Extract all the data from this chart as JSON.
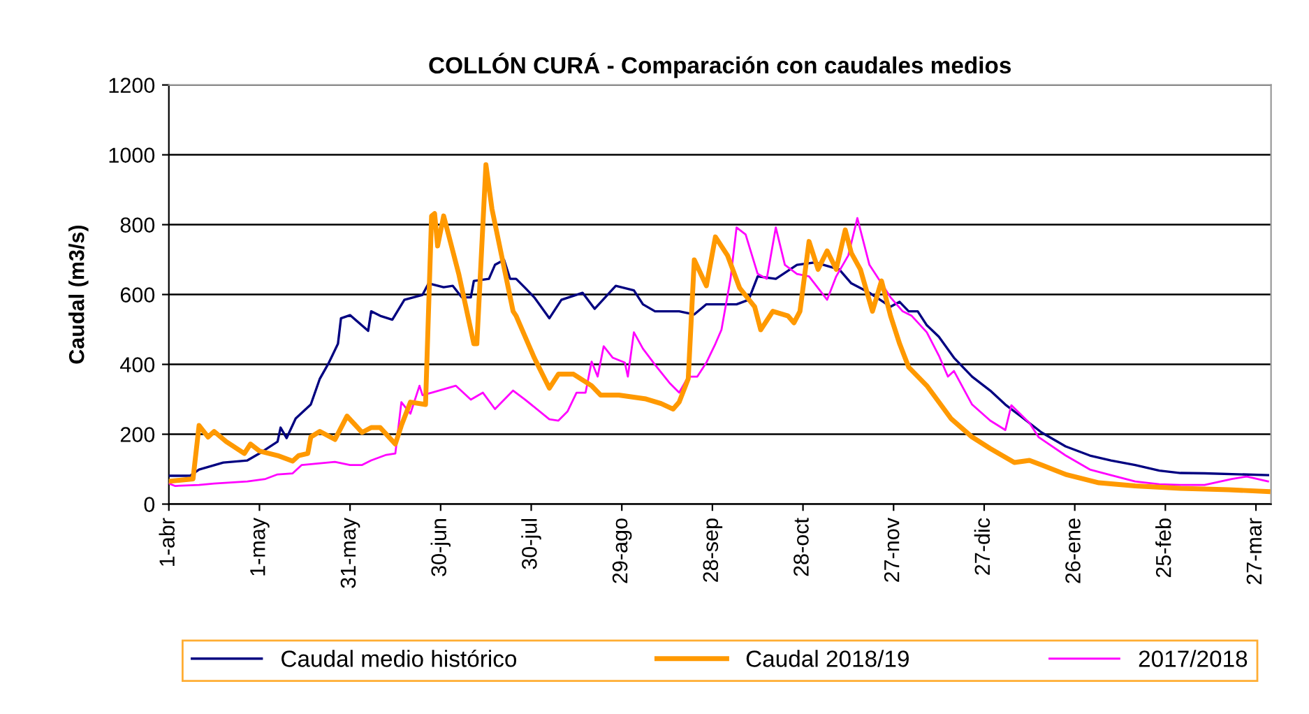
{
  "chart_data": {
    "type": "line",
    "title": "COLLÓN CURÁ - Comparación con caudales medios",
    "ylabel": "Caudal (m3/s)",
    "xlim": [
      "2018-04-01",
      "2019-04-01"
    ],
    "ylim": [
      0,
      1200
    ],
    "yticks": [
      0,
      200,
      400,
      600,
      800,
      1000,
      1200
    ],
    "xticks": [
      {
        "value": "2018-04-01",
        "label": "1-abr"
      },
      {
        "value": "2018-05-01",
        "label": "1-may"
      },
      {
        "value": "2018-05-31",
        "label": "31-may"
      },
      {
        "value": "2018-06-30",
        "label": "30-jun"
      },
      {
        "value": "2018-07-30",
        "label": "30-jul"
      },
      {
        "value": "2018-08-29",
        "label": "29-ago"
      },
      {
        "value": "2018-09-28",
        "label": "28-sep"
      },
      {
        "value": "2018-10-28",
        "label": "28-oct"
      },
      {
        "value": "2018-11-27",
        "label": "27-nov"
      },
      {
        "value": "2018-12-27",
        "label": "27-dic"
      },
      {
        "value": "2019-01-26",
        "label": "26-ene"
      },
      {
        "value": "2019-02-25",
        "label": "25-feb"
      },
      {
        "value": "2019-03-27",
        "label": "27-mar"
      }
    ],
    "grid": "y",
    "legend": "bottom",
    "marker": "none",
    "line_style": "solid",
    "series": [
      {
        "name": "Caudal medio histórico",
        "color": "#000080",
        "x": [
          "2018-04-01",
          "2018-04-08",
          "2018-04-11",
          "2018-04-19",
          "2018-04-27",
          "2018-05-01",
          "2018-05-07",
          "2018-05-08",
          "2018-05-10",
          "2018-05-13",
          "2018-05-18",
          "2018-05-21",
          "2018-05-24",
          "2018-05-27",
          "2018-05-28",
          "2018-05-31",
          "2018-06-06",
          "2018-06-07",
          "2018-06-10",
          "2018-06-14",
          "2018-06-18",
          "2018-06-24",
          "2018-06-26",
          "2018-07-01",
          "2018-07-04",
          "2018-07-07",
          "2018-07-10",
          "2018-07-11",
          "2018-07-16",
          "2018-07-18",
          "2018-07-21",
          "2018-07-23",
          "2018-07-25",
          "2018-07-28",
          "2018-07-31",
          "2018-08-05",
          "2018-08-09",
          "2018-08-16",
          "2018-08-20",
          "2018-08-27",
          "2018-09-02",
          "2018-09-05",
          "2018-09-09",
          "2018-09-17",
          "2018-09-22",
          "2018-09-26",
          "2018-10-06",
          "2018-10-10",
          "2018-10-13",
          "2018-10-19",
          "2018-10-26",
          "2018-11-01",
          "2018-11-09",
          "2018-11-13",
          "2018-11-19",
          "2018-11-26",
          "2018-11-29",
          "2018-12-02",
          "2018-12-05",
          "2018-12-08",
          "2018-12-12",
          "2018-12-17",
          "2018-12-23",
          "2018-12-29",
          "2019-01-03",
          "2019-01-08",
          "2019-01-15",
          "2019-01-23",
          "2019-01-31",
          "2019-02-07",
          "2019-02-15",
          "2019-02-23",
          "2019-03-02",
          "2019-03-10",
          "2019-03-31"
        ],
        "values": [
          81,
          81,
          99,
          119,
          125,
          145,
          179,
          219,
          189,
          245,
          285,
          359,
          405,
          459,
          532,
          541,
          496,
          552,
          539,
          528,
          585,
          599,
          632,
          621,
          625,
          592,
          592,
          639,
          645,
          685,
          699,
          645,
          645,
          619,
          592,
          532,
          585,
          605,
          559,
          625,
          612,
          572,
          552,
          552,
          543,
          572,
          572,
          585,
          652,
          645,
          685,
          692,
          672,
          632,
          605,
          565,
          579,
          552,
          552,
          512,
          479,
          419,
          365,
          325,
          285,
          252,
          205,
          165,
          139,
          125,
          112,
          96,
          89,
          88,
          83
        ]
      },
      {
        "name": "Caudal 2018/19",
        "color": "#ff9900",
        "x": [
          "2018-04-01",
          "2018-04-09",
          "2018-04-11",
          "2018-04-14",
          "2018-04-16",
          "2018-04-20",
          "2018-04-26",
          "2018-04-28",
          "2018-05-01",
          "2018-05-07",
          "2018-05-12",
          "2018-05-14",
          "2018-05-17",
          "2018-05-18",
          "2018-05-21",
          "2018-05-26",
          "2018-05-30",
          "2018-06-04",
          "2018-06-07",
          "2018-06-10",
          "2018-06-15",
          "2018-06-17",
          "2018-06-20",
          "2018-06-25",
          "2018-06-27",
          "2018-06-28",
          "2018-06-29",
          "2018-07-01",
          "2018-07-06",
          "2018-07-11",
          "2018-07-12",
          "2018-07-15",
          "2018-07-17",
          "2018-07-24",
          "2018-07-25",
          "2018-07-31",
          "2018-08-05",
          "2018-08-08",
          "2018-08-13",
          "2018-08-19",
          "2018-08-22",
          "2018-08-28",
          "2018-09-06",
          "2018-09-11",
          "2018-09-15",
          "2018-09-17",
          "2018-09-20",
          "2018-09-22",
          "2018-09-26",
          "2018-09-29",
          "2018-10-03",
          "2018-10-07",
          "2018-10-12",
          "2018-10-14",
          "2018-10-18",
          "2018-10-23",
          "2018-10-25",
          "2018-10-27",
          "2018-10-30",
          "2018-11-02",
          "2018-11-05",
          "2018-11-08",
          "2018-11-11",
          "2018-11-13",
          "2018-11-16",
          "2018-11-20",
          "2018-11-23",
          "2018-11-26",
          "2018-11-29",
          "2018-12-02",
          "2018-12-08",
          "2018-12-16",
          "2018-12-23",
          "2018-12-29",
          "2019-01-06",
          "2019-01-11",
          "2019-01-15",
          "2019-01-23",
          "2019-02-03",
          "2019-02-15",
          "2019-03-02",
          "2019-03-18",
          "2019-03-31"
        ],
        "values": [
          65,
          72,
          225,
          192,
          208,
          179,
          145,
          172,
          152,
          139,
          123,
          139,
          145,
          192,
          208,
          185,
          252,
          205,
          219,
          219,
          172,
          225,
          292,
          285,
          825,
          832,
          739,
          825,
          659,
          459,
          459,
          972,
          845,
          552,
          539,
          419,
          332,
          372,
          372,
          339,
          312,
          312,
          301,
          288,
          272,
          292,
          359,
          699,
          625,
          765,
          712,
          619,
          565,
          499,
          552,
          539,
          519,
          552,
          752,
          672,
          725,
          672,
          785,
          719,
          672,
          552,
          639,
          539,
          459,
          392,
          339,
          245,
          192,
          159,
          119,
          125,
          112,
          85,
          61,
          52,
          45,
          41,
          36
        ]
      },
      {
        "name": "2017/2018",
        "color": "#ff00ff",
        "x": [
          "2018-04-01",
          "2018-04-03",
          "2018-04-11",
          "2018-04-16",
          "2018-04-27",
          "2018-05-03",
          "2018-05-07",
          "2018-05-12",
          "2018-05-15",
          "2018-05-26",
          "2018-05-31",
          "2018-06-04",
          "2018-06-07",
          "2018-06-12",
          "2018-06-15",
          "2018-06-17",
          "2018-06-20",
          "2018-06-23",
          "2018-06-24",
          "2018-06-27",
          "2018-07-05",
          "2018-07-10",
          "2018-07-14",
          "2018-07-18",
          "2018-07-24",
          "2018-07-28",
          "2018-08-05",
          "2018-08-08",
          "2018-08-11",
          "2018-08-14",
          "2018-08-17",
          "2018-08-19",
          "2018-08-21",
          "2018-08-23",
          "2018-08-26",
          "2018-08-30",
          "2018-08-31",
          "2018-09-02",
          "2018-09-05",
          "2018-09-09",
          "2018-09-14",
          "2018-09-17",
          "2018-09-20",
          "2018-09-23",
          "2018-09-26",
          "2018-09-29",
          "2018-10-01",
          "2018-10-04",
          "2018-10-06",
          "2018-10-09",
          "2018-10-13",
          "2018-10-16",
          "2018-10-19",
          "2018-10-22",
          "2018-10-26",
          "2018-10-30",
          "2018-11-05",
          "2018-11-08",
          "2018-11-12",
          "2018-11-15",
          "2018-11-19",
          "2018-11-26",
          "2018-11-30",
          "2018-12-03",
          "2018-12-08",
          "2018-12-12",
          "2018-12-15",
          "2018-12-17",
          "2018-12-23",
          "2018-12-29",
          "2019-01-03",
          "2019-01-05",
          "2019-01-11",
          "2019-01-14",
          "2019-01-23",
          "2019-01-31",
          "2019-02-07",
          "2019-02-15",
          "2019-02-23",
          "2019-03-02",
          "2019-03-10",
          "2019-03-19",
          "2019-03-24",
          "2019-03-31"
        ],
        "values": [
          59,
          52,
          55,
          59,
          65,
          72,
          85,
          88,
          112,
          121,
          112,
          112,
          125,
          141,
          145,
          292,
          259,
          339,
          312,
          319,
          339,
          299,
          319,
          272,
          325,
          299,
          243,
          239,
          265,
          319,
          319,
          408,
          365,
          452,
          419,
          405,
          365,
          492,
          445,
          399,
          345,
          319,
          365,
          365,
          405,
          459,
          499,
          645,
          792,
          772,
          659,
          645,
          792,
          685,
          659,
          652,
          585,
          652,
          712,
          819,
          685,
          592,
          552,
          539,
          492,
          425,
          365,
          381,
          285,
          239,
          212,
          283,
          232,
          192,
          139,
          99,
          83,
          65,
          57,
          55,
          55,
          72,
          79,
          65
        ]
      }
    ]
  }
}
